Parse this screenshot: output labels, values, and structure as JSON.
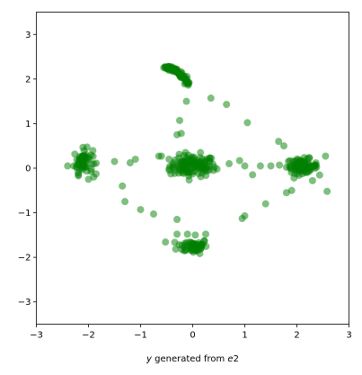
{
  "chart_data": {
    "type": "scatter",
    "xlim": [
      -3,
      3
    ],
    "ylim": [
      -3.5,
      3.5
    ],
    "xticks": [
      "-3",
      "-2",
      "-1",
      "0",
      "1",
      "2",
      "3"
    ],
    "yticks": [
      "-3",
      "-2",
      "-1",
      "0",
      "1",
      "2",
      "3"
    ],
    "xlabel": {
      "italic": "y",
      "middle": " generated from ",
      "italic2": "e",
      "suffix": "2"
    },
    "ylabel": "",
    "title": "",
    "grid": false,
    "legend": "none",
    "marker_color": "#008000",
    "marker_alpha": 0.5,
    "series": [
      {
        "clusters": [
          {
            "center": [
              0.0,
              0.05
            ],
            "spread": [
              0.22,
              0.12
            ],
            "count": 120
          },
          {
            "center": [
              0.0,
              -1.75
            ],
            "spread": [
              0.15,
              0.08
            ],
            "count": 60
          },
          {
            "center": [
              -2.1,
              0.15
            ],
            "spread": [
              0.09,
              0.14
            ],
            "count": 60
          },
          {
            "center": [
              2.1,
              0.05
            ],
            "spread": [
              0.15,
              0.08
            ],
            "count": 80
          }
        ],
        "arcs": [
          {
            "from": [
              -0.55,
              2.27
            ],
            "to": [
              -0.08,
              1.9
            ],
            "count": 50
          },
          {
            "from": [
              -0.55,
              2.27
            ],
            "to": [
              -0.08,
              1.85
            ],
            "count": 20
          }
        ],
        "points": [
          [
            -1.5,
            0.15
          ],
          [
            -1.2,
            0.12
          ],
          [
            -1.1,
            0.2
          ],
          [
            -1.35,
            -0.4
          ],
          [
            -1.3,
            -0.75
          ],
          [
            -1.0,
            -0.93
          ],
          [
            -0.75,
            -1.03
          ],
          [
            -0.6,
            0.27
          ],
          [
            -0.65,
            0.27
          ],
          [
            -0.3,
            0.75
          ],
          [
            -0.25,
            1.07
          ],
          [
            -0.22,
            0.78
          ],
          [
            -0.12,
            1.5
          ],
          [
            0.35,
            1.57
          ],
          [
            0.65,
            1.43
          ],
          [
            1.05,
            1.02
          ],
          [
            -0.3,
            -1.15
          ],
          [
            -0.3,
            -1.48
          ],
          [
            -0.1,
            -1.48
          ],
          [
            0.05,
            -1.5
          ],
          [
            0.25,
            -1.48
          ],
          [
            0.7,
            0.1
          ],
          [
            0.9,
            0.17
          ],
          [
            1.0,
            0.05
          ],
          [
            1.15,
            -0.15
          ],
          [
            1.3,
            0.05
          ],
          [
            1.5,
            0.05
          ],
          [
            1.65,
            0.6
          ],
          [
            1.75,
            0.5
          ],
          [
            1.9,
            -0.5
          ],
          [
            1.8,
            -0.55
          ],
          [
            1.4,
            -0.8
          ],
          [
            0.95,
            -1.13
          ],
          [
            1.0,
            -1.07
          ],
          [
            2.55,
            0.27
          ],
          [
            2.58,
            -0.52
          ],
          [
            2.3,
            -0.28
          ],
          [
            2.35,
            0.0
          ],
          [
            -2.0,
            -0.25
          ],
          [
            -1.9,
            -0.2
          ],
          [
            -2.4,
            0.05
          ],
          [
            -2.2,
            -0.1
          ],
          [
            0.4,
            -0.05
          ],
          [
            -0.45,
            -0.05
          ],
          [
            0.15,
            0.35
          ]
        ]
      }
    ]
  }
}
